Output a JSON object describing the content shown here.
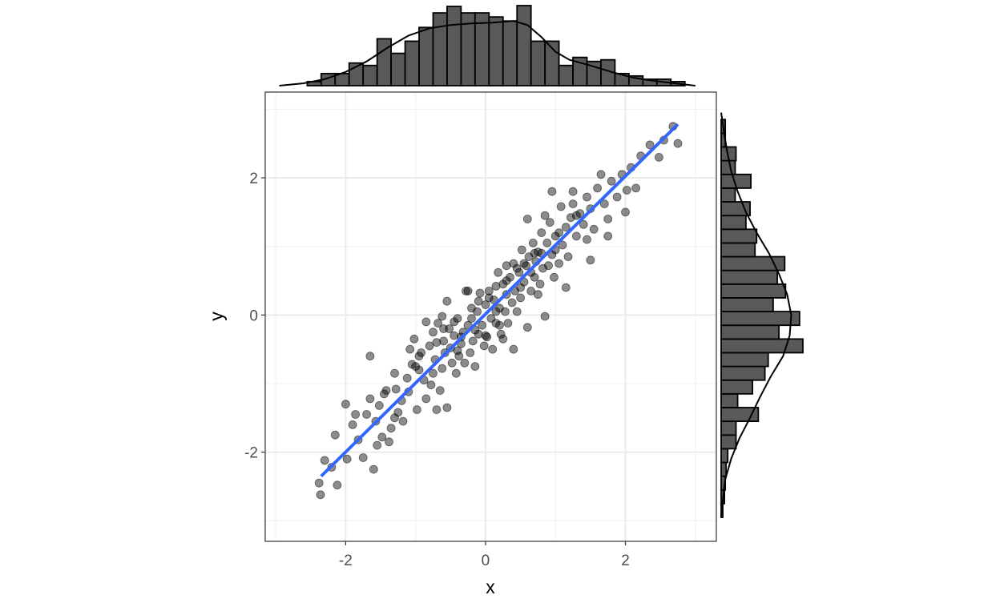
{
  "chart_data": {
    "type": "scatter",
    "title": "",
    "xlabel": "x",
    "ylabel": "y",
    "xlim": [
      -3.15,
      3.3
    ],
    "ylim": [
      -3.3,
      3.25
    ],
    "x_ticks": [
      -2,
      0,
      2
    ],
    "y_ticks": [
      -2,
      0,
      2
    ],
    "x_tick_labels": [
      "-2",
      "0",
      "2"
    ],
    "y_tick_labels": [
      "-2",
      "0",
      "2"
    ],
    "grid": true,
    "theme": "black-and-white",
    "point_color": "#000000",
    "point_alpha": 0.45,
    "fit_line": {
      "method": "linear",
      "color": "#3366FF",
      "x": [
        -2.35,
        2.75
      ],
      "y": [
        -2.35,
        2.78
      ]
    },
    "points": [
      [
        -2.38,
        -2.45
      ],
      [
        -2.36,
        -2.62
      ],
      [
        -2.3,
        -2.12
      ],
      [
        -2.2,
        -2.22
      ],
      [
        -2.15,
        -1.75
      ],
      [
        -2.12,
        -2.48
      ],
      [
        -1.98,
        -2.1
      ],
      [
        -1.9,
        -1.6
      ],
      [
        -1.86,
        -1.45
      ],
      [
        -1.82,
        -1.82
      ],
      [
        -1.75,
        -2.08
      ],
      [
        -1.7,
        -1.45
      ],
      [
        -1.65,
        -1.22
      ],
      [
        -1.6,
        -2.25
      ],
      [
        -1.57,
        -1.55
      ],
      [
        -1.52,
        -1.32
      ],
      [
        -1.48,
        -1.78
      ],
      [
        -1.42,
        -1.1
      ],
      [
        -1.38,
        -1.85
      ],
      [
        -1.35,
        -1.65
      ],
      [
        -1.3,
        -1.5
      ],
      [
        -1.28,
        -1.08
      ],
      [
        -1.25,
        -1.42
      ],
      [
        -1.2,
        -1.25
      ],
      [
        -1.18,
        -1.55
      ],
      [
        -1.12,
        -0.92
      ],
      [
        -1.1,
        -1.12
      ],
      [
        -1.08,
        -0.5
      ],
      [
        -1.05,
        -0.72
      ],
      [
        -1.02,
        -0.35
      ],
      [
        -0.98,
        -1.38
      ],
      [
        -0.95,
        -0.8
      ],
      [
        -0.92,
        -0.55
      ],
      [
        -0.88,
        -0.95
      ],
      [
        -0.85,
        -1.22
      ],
      [
        -0.8,
        -0.45
      ],
      [
        -0.78,
        -1.02
      ],
      [
        -0.75,
        -0.25
      ],
      [
        -0.72,
        -0.65
      ],
      [
        -0.7,
        -1.38
      ],
      [
        -0.68,
        -0.12
      ],
      [
        -0.65,
        -1.1
      ],
      [
        -0.62,
        -0.78
      ],
      [
        -0.6,
        -0.38
      ],
      [
        -0.58,
        -0.55
      ],
      [
        -0.55,
        -1.35
      ],
      [
        -0.52,
        -0.2
      ],
      [
        -0.5,
        -0.48
      ],
      [
        -0.48,
        -0.7
      ],
      [
        -0.45,
        -0.3
      ],
      [
        -0.42,
        -0.85
      ],
      [
        -0.4,
        -0.05
      ],
      [
        -0.38,
        -0.6
      ],
      [
        -0.35,
        -0.42
      ],
      [
        -0.32,
        -0.25
      ],
      [
        -0.3,
        -0.7
      ],
      [
        -0.28,
        0.35
      ],
      [
        -0.25,
        -0.15
      ],
      [
        -0.22,
        -0.55
      ],
      [
        -0.2,
        0.1
      ],
      [
        -0.18,
        -0.38
      ],
      [
        -0.15,
        -0.75
      ],
      [
        -0.12,
        0.05
      ],
      [
        -0.1,
        -0.28
      ],
      [
        -0.08,
        0.32
      ],
      [
        -0.05,
        -0.15
      ],
      [
        -0.02,
        -0.45
      ],
      [
        0.0,
        0.15
      ],
      [
        0.02,
        -0.32
      ],
      [
        0.05,
        0.35
      ],
      [
        0.08,
        -0.05
      ],
      [
        0.1,
        -0.5
      ],
      [
        0.12,
        0.22
      ],
      [
        0.15,
        -0.12
      ],
      [
        0.18,
        0.62
      ],
      [
        0.2,
        0.1
      ],
      [
        0.22,
        -0.28
      ],
      [
        0.25,
        0.45
      ],
      [
        0.28,
        0.05
      ],
      [
        0.3,
        0.3
      ],
      [
        0.32,
        -0.12
      ],
      [
        0.35,
        0.55
      ],
      [
        0.38,
        0.18
      ],
      [
        0.4,
        0.75
      ],
      [
        0.42,
        0.35
      ],
      [
        0.45,
        0.05
      ],
      [
        0.48,
        0.62
      ],
      [
        0.5,
        0.25
      ],
      [
        0.52,
        0.95
      ],
      [
        0.55,
        0.48
      ],
      [
        0.58,
        0.72
      ],
      [
        0.6,
        -0.18
      ],
      [
        0.62,
        0.85
      ],
      [
        0.65,
        0.35
      ],
      [
        0.68,
        1.05
      ],
      [
        0.7,
        0.55
      ],
      [
        0.72,
        0.78
      ],
      [
        0.75,
        0.92
      ],
      [
        0.78,
        0.45
      ],
      [
        0.8,
        1.2
      ],
      [
        0.82,
        0.68
      ],
      [
        0.85,
        -0.02
      ],
      [
        0.88,
        1.05
      ],
      [
        0.9,
        0.72
      ],
      [
        0.92,
        1.35
      ],
      [
        0.95,
        0.88
      ],
      [
        0.98,
        0.55
      ],
      [
        1.0,
        1.15
      ],
      [
        1.05,
        0.75
      ],
      [
        1.08,
        1.58
      ],
      [
        1.1,
        1.02
      ],
      [
        1.15,
        1.28
      ],
      [
        1.18,
        0.85
      ],
      [
        1.22,
        1.42
      ],
      [
        1.25,
        1.62
      ],
      [
        1.3,
        1.15
      ],
      [
        1.35,
        1.48
      ],
      [
        1.4,
        1.32
      ],
      [
        1.45,
        1.72
      ],
      [
        1.5,
        1.55
      ],
      [
        1.55,
        1.25
      ],
      [
        1.6,
        1.85
      ],
      [
        1.65,
        2.05
      ],
      [
        1.7,
        1.62
      ],
      [
        1.75,
        1.15
      ],
      [
        1.8,
        1.95
      ],
      [
        1.88,
        1.72
      ],
      [
        1.95,
        2.05
      ],
      [
        2.02,
        1.82
      ],
      [
        2.08,
        2.15
      ],
      [
        2.15,
        1.85
      ],
      [
        2.22,
        2.32
      ],
      [
        2.35,
        2.48
      ],
      [
        2.48,
        2.3
      ],
      [
        2.55,
        2.55
      ],
      [
        2.68,
        2.75
      ],
      [
        2.75,
        2.5
      ],
      [
        -0.95,
        -0.6
      ],
      [
        -0.7,
        -0.4
      ],
      [
        -0.45,
        -0.1
      ],
      [
        -0.2,
        -0.05
      ],
      [
        0.05,
        0.25
      ],
      [
        0.3,
        0.5
      ],
      [
        0.55,
        0.75
      ],
      [
        0.8,
        0.9
      ],
      [
        1.05,
        1.2
      ],
      [
        1.3,
        1.45
      ],
      [
        -0.6,
        -0.2
      ],
      [
        -0.35,
        -0.32
      ],
      [
        0.15,
        0.42
      ],
      [
        0.45,
        0.68
      ],
      [
        0.7,
        0.9
      ],
      [
        -1.45,
        -1.15
      ],
      [
        -1.0,
        -0.75
      ],
      [
        0.95,
        1.8
      ],
      [
        1.25,
        1.8
      ],
      [
        -0.55,
        0.2
      ],
      [
        0.25,
        -0.35
      ],
      [
        0.6,
        1.4
      ],
      [
        1.5,
        0.8
      ],
      [
        -1.65,
        -0.6
      ],
      [
        -0.85,
        -0.1
      ],
      [
        0.4,
        -0.5
      ],
      [
        1.15,
        0.4
      ],
      [
        -0.25,
        0.35
      ],
      [
        0.75,
        0.3
      ],
      [
        -1.3,
        -0.85
      ],
      [
        -0.1,
        0.2
      ],
      [
        0.3,
        0.72
      ],
      [
        -0.75,
        -0.85
      ],
      [
        0.0,
        -0.3
      ],
      [
        0.65,
        0.62
      ],
      [
        1.0,
        0.95
      ],
      [
        -0.4,
        -0.52
      ],
      [
        0.15,
        0.05
      ],
      [
        0.85,
        1.45
      ],
      [
        1.45,
        1.1
      ],
      [
        1.75,
        1.4
      ],
      [
        2.0,
        1.5
      ],
      [
        -2.0,
        -1.3
      ],
      [
        -1.55,
        -1.9
      ],
      [
        -0.15,
        -0.22
      ],
      [
        0.5,
        0.4
      ],
      [
        0.2,
        -0.15
      ],
      [
        -0.62,
        -0.02
      ]
    ],
    "x_marginal": {
      "type": "histogram",
      "bins": [
        [
          -2.55,
          -2.35,
          0.05
        ],
        [
          -2.35,
          -2.15,
          0.15
        ],
        [
          -2.15,
          -1.95,
          0.15
        ],
        [
          -1.95,
          -1.75,
          0.28
        ],
        [
          -1.75,
          -1.55,
          0.25
        ],
        [
          -1.55,
          -1.35,
          0.58
        ],
        [
          -1.35,
          -1.15,
          0.4
        ],
        [
          -1.15,
          -0.95,
          0.55
        ],
        [
          -0.95,
          -0.75,
          0.72
        ],
        [
          -0.75,
          -0.55,
          0.9
        ],
        [
          -0.55,
          -0.35,
          0.98
        ],
        [
          -0.35,
          -0.15,
          0.9
        ],
        [
          -0.15,
          0.05,
          0.9
        ],
        [
          0.05,
          0.25,
          0.85
        ],
        [
          0.25,
          0.45,
          0.8
        ],
        [
          0.45,
          0.65,
          0.99
        ],
        [
          0.65,
          0.85,
          0.55
        ],
        [
          0.85,
          1.05,
          0.55
        ],
        [
          1.05,
          1.25,
          0.25
        ],
        [
          1.25,
          1.45,
          0.35
        ],
        [
          1.45,
          1.65,
          0.3
        ],
        [
          1.65,
          1.85,
          0.32
        ],
        [
          1.85,
          2.05,
          0.15
        ],
        [
          2.05,
          2.25,
          0.12
        ],
        [
          2.25,
          2.45,
          0.08
        ],
        [
          2.45,
          2.65,
          0.08
        ],
        [
          2.65,
          2.85,
          0.05
        ]
      ],
      "density": [
        [
          -2.95,
          0.0
        ],
        [
          -2.6,
          0.03
        ],
        [
          -2.3,
          0.08
        ],
        [
          -2.0,
          0.17
        ],
        [
          -1.7,
          0.3
        ],
        [
          -1.4,
          0.47
        ],
        [
          -1.1,
          0.62
        ],
        [
          -0.8,
          0.71
        ],
        [
          -0.5,
          0.75
        ],
        [
          -0.2,
          0.77
        ],
        [
          0.1,
          0.78
        ],
        [
          0.4,
          0.8
        ],
        [
          0.6,
          0.75
        ],
        [
          0.8,
          0.6
        ],
        [
          1.0,
          0.42
        ],
        [
          1.2,
          0.32
        ],
        [
          1.5,
          0.25
        ],
        [
          1.8,
          0.17
        ],
        [
          2.1,
          0.1
        ],
        [
          2.4,
          0.06
        ],
        [
          2.7,
          0.03
        ],
        [
          3.0,
          0.0
        ]
      ]
    },
    "y_marginal": {
      "type": "histogram",
      "bins": [
        [
          -2.95,
          -2.75,
          0.02
        ],
        [
          -2.75,
          -2.55,
          0.04
        ],
        [
          -2.55,
          -2.35,
          0.05
        ],
        [
          -2.35,
          -2.15,
          0.06
        ],
        [
          -2.15,
          -1.95,
          0.08
        ],
        [
          -1.95,
          -1.75,
          0.18
        ],
        [
          -1.75,
          -1.55,
          0.18
        ],
        [
          -1.55,
          -1.35,
          0.45
        ],
        [
          -1.35,
          -1.15,
          0.2
        ],
        [
          -1.15,
          -0.95,
          0.38
        ],
        [
          -0.95,
          -0.75,
          0.53
        ],
        [
          -0.75,
          -0.55,
          0.57
        ],
        [
          -0.55,
          -0.35,
          0.99
        ],
        [
          -0.35,
          -0.15,
          0.7
        ],
        [
          -0.15,
          0.05,
          0.95
        ],
        [
          0.05,
          0.25,
          0.63
        ],
        [
          0.25,
          0.45,
          0.78
        ],
        [
          0.45,
          0.65,
          0.68
        ],
        [
          0.65,
          0.85,
          0.77
        ],
        [
          0.85,
          1.05,
          0.41
        ],
        [
          1.05,
          1.25,
          0.43
        ],
        [
          1.25,
          1.45,
          0.3
        ],
        [
          1.45,
          1.65,
          0.35
        ],
        [
          1.65,
          1.85,
          0.17
        ],
        [
          1.85,
          2.05,
          0.36
        ],
        [
          2.05,
          2.25,
          0.17
        ],
        [
          2.25,
          2.45,
          0.18
        ],
        [
          2.45,
          2.65,
          0.05
        ],
        [
          2.65,
          2.85,
          0.05
        ]
      ],
      "density": [
        [
          -2.95,
          0.0
        ],
        [
          -2.7,
          0.02
        ],
        [
          -2.4,
          0.05
        ],
        [
          -2.1,
          0.12
        ],
        [
          -1.8,
          0.22
        ],
        [
          -1.5,
          0.35
        ],
        [
          -1.2,
          0.47
        ],
        [
          -0.9,
          0.6
        ],
        [
          -0.6,
          0.75
        ],
        [
          -0.3,
          0.83
        ],
        [
          0.0,
          0.85
        ],
        [
          0.3,
          0.8
        ],
        [
          0.6,
          0.7
        ],
        [
          0.9,
          0.58
        ],
        [
          1.2,
          0.43
        ],
        [
          1.5,
          0.3
        ],
        [
          1.8,
          0.2
        ],
        [
          2.1,
          0.12
        ],
        [
          2.4,
          0.07
        ],
        [
          2.7,
          0.03
        ],
        [
          2.95,
          0.0
        ]
      ]
    }
  }
}
